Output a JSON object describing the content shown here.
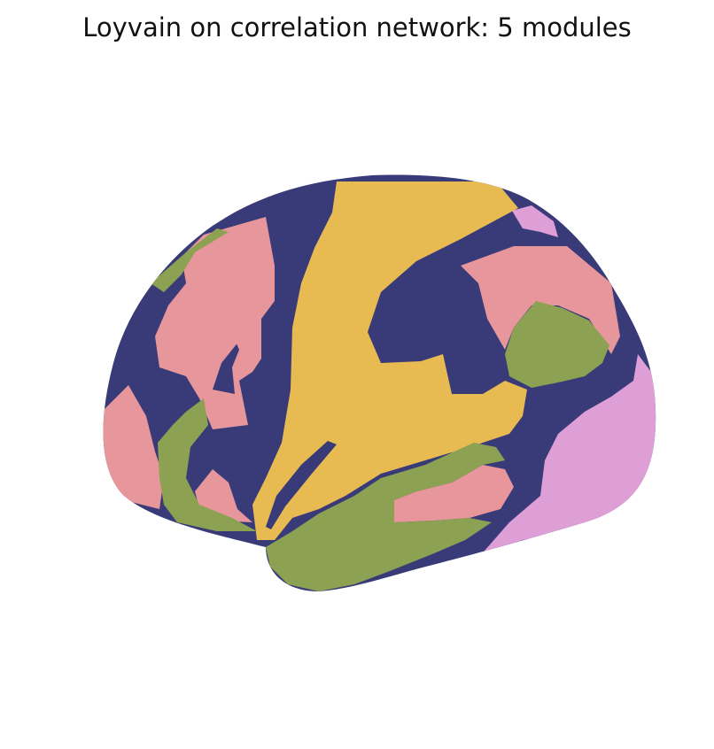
{
  "title": "Loyvain on correlation network: 5 modules",
  "modules": [
    {
      "id": 1,
      "color": "#393b79"
    },
    {
      "id": 2,
      "color": "#e7ba52"
    },
    {
      "id": 3,
      "color": "#e7969c"
    },
    {
      "id": 4,
      "color": "#8ca252"
    },
    {
      "id": 5,
      "color": "#de9ed6"
    }
  ]
}
